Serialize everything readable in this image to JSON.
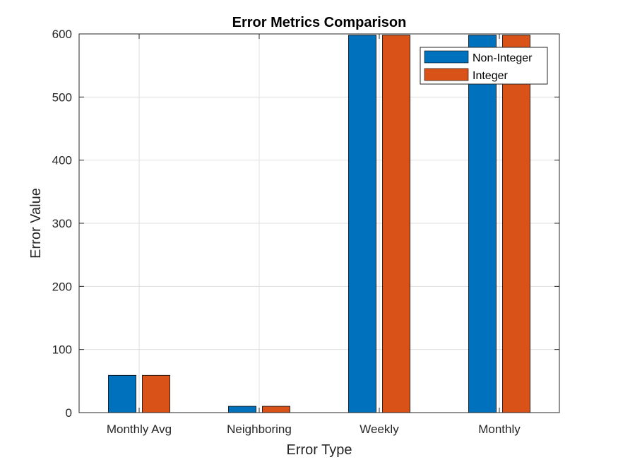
{
  "chart_data": {
    "type": "bar",
    "title": "Error Metrics Comparison",
    "xlabel": "Error Type",
    "ylabel": "Error Value",
    "categories": [
      "Monthly Avg",
      "Neighboring",
      "Weekly",
      "Monthly"
    ],
    "series": [
      {
        "name": "Non-Integer",
        "color": "#0072BD",
        "values": [
          59,
          10,
          598,
          598
        ]
      },
      {
        "name": "Integer",
        "color": "#D95319",
        "values": [
          59,
          10,
          598,
          598
        ]
      }
    ],
    "ylim": [
      0,
      600
    ],
    "yticks": [
      0,
      100,
      200,
      300,
      400,
      500,
      600
    ],
    "grid": true,
    "legend_position": "top-right"
  }
}
